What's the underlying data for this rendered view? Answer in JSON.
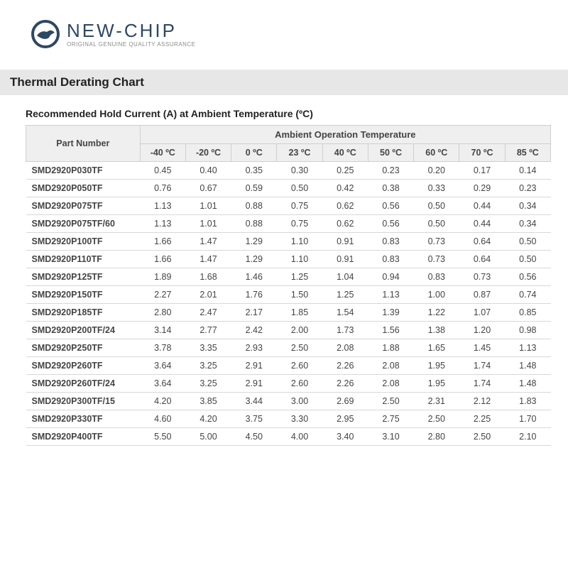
{
  "logo": {
    "main": "NEW-CHIP",
    "sub": "ORIGINAL GENUINE QUALITY ASSURANCE",
    "icon_colors": {
      "ring": "#2e4763",
      "bird": "#ffffff"
    }
  },
  "title_bar": "Thermal Derating Chart",
  "subtitle": "Recommended Hold Current (A) at Ambient Temperature (ºC)",
  "table": {
    "part_header": "Part Number",
    "group_header": "Ambient Operation Temperature",
    "temp_columns": [
      "-40 ºC",
      "-20 ºC",
      "0 ºC",
      "23 ºC",
      "40 ºC",
      "50 ºC",
      "60 ºC",
      "70 ºC",
      "85 ºC"
    ],
    "rows": [
      {
        "part": "SMD2920P030TF",
        "vals": [
          "0.45",
          "0.40",
          "0.35",
          "0.30",
          "0.25",
          "0.23",
          "0.20",
          "0.17",
          "0.14"
        ]
      },
      {
        "part": "SMD2920P050TF",
        "vals": [
          "0.76",
          "0.67",
          "0.59",
          "0.50",
          "0.42",
          "0.38",
          "0.33",
          "0.29",
          "0.23"
        ]
      },
      {
        "part": "SMD2920P075TF",
        "vals": [
          "1.13",
          "1.01",
          "0.88",
          "0.75",
          "0.62",
          "0.56",
          "0.50",
          "0.44",
          "0.34"
        ]
      },
      {
        "part": "SMD2920P075TF/60",
        "vals": [
          "1.13",
          "1.01",
          "0.88",
          "0.75",
          "0.62",
          "0.56",
          "0.50",
          "0.44",
          "0.34"
        ]
      },
      {
        "part": "SMD2920P100TF",
        "vals": [
          "1.66",
          "1.47",
          "1.29",
          "1.10",
          "0.91",
          "0.83",
          "0.73",
          "0.64",
          "0.50"
        ]
      },
      {
        "part": "SMD2920P110TF",
        "vals": [
          "1.66",
          "1.47",
          "1.29",
          "1.10",
          "0.91",
          "0.83",
          "0.73",
          "0.64",
          "0.50"
        ]
      },
      {
        "part": "SMD2920P125TF",
        "vals": [
          "1.89",
          "1.68",
          "1.46",
          "1.25",
          "1.04",
          "0.94",
          "0.83",
          "0.73",
          "0.56"
        ]
      },
      {
        "part": "SMD2920P150TF",
        "vals": [
          "2.27",
          "2.01",
          "1.76",
          "1.50",
          "1.25",
          "1.13",
          "1.00",
          "0.87",
          "0.74"
        ]
      },
      {
        "part": "SMD2920P185TF",
        "vals": [
          "2.80",
          "2.47",
          "2.17",
          "1.85",
          "1.54",
          "1.39",
          "1.22",
          "1.07",
          "0.85"
        ]
      },
      {
        "part": "SMD2920P200TF/24",
        "vals": [
          "3.14",
          "2.77",
          "2.42",
          "2.00",
          "1.73",
          "1.56",
          "1.38",
          "1.20",
          "0.98"
        ]
      },
      {
        "part": "SMD2920P250TF",
        "vals": [
          "3.78",
          "3.35",
          "2.93",
          "2.50",
          "2.08",
          "1.88",
          "1.65",
          "1.45",
          "1.13"
        ]
      },
      {
        "part": "SMD2920P260TF",
        "vals": [
          "3.64",
          "3.25",
          "2.91",
          "2.60",
          "2.26",
          "2.08",
          "1.95",
          "1.74",
          "1.48"
        ]
      },
      {
        "part": "SMD2920P260TF/24",
        "vals": [
          "3.64",
          "3.25",
          "2.91",
          "2.60",
          "2.26",
          "2.08",
          "1.95",
          "1.74",
          "1.48"
        ]
      },
      {
        "part": "SMD2920P300TF/15",
        "vals": [
          "4.20",
          "3.85",
          "3.44",
          "3.00",
          "2.69",
          "2.50",
          "2.31",
          "2.12",
          "1.83"
        ]
      },
      {
        "part": "SMD2920P330TF",
        "vals": [
          "4.60",
          "4.20",
          "3.75",
          "3.30",
          "2.95",
          "2.75",
          "2.50",
          "2.25",
          "1.70"
        ]
      },
      {
        "part": "SMD2920P400TF",
        "vals": [
          "5.50",
          "5.00",
          "4.50",
          "4.00",
          "3.40",
          "3.10",
          "2.80",
          "2.50",
          "2.10"
        ]
      }
    ]
  },
  "styling": {
    "header_bg": "#efefef",
    "border_color": "#cfcfcf",
    "row_border": "#d8d8d8",
    "text_color": "#444444",
    "title_bg": "#e7e7e7"
  }
}
